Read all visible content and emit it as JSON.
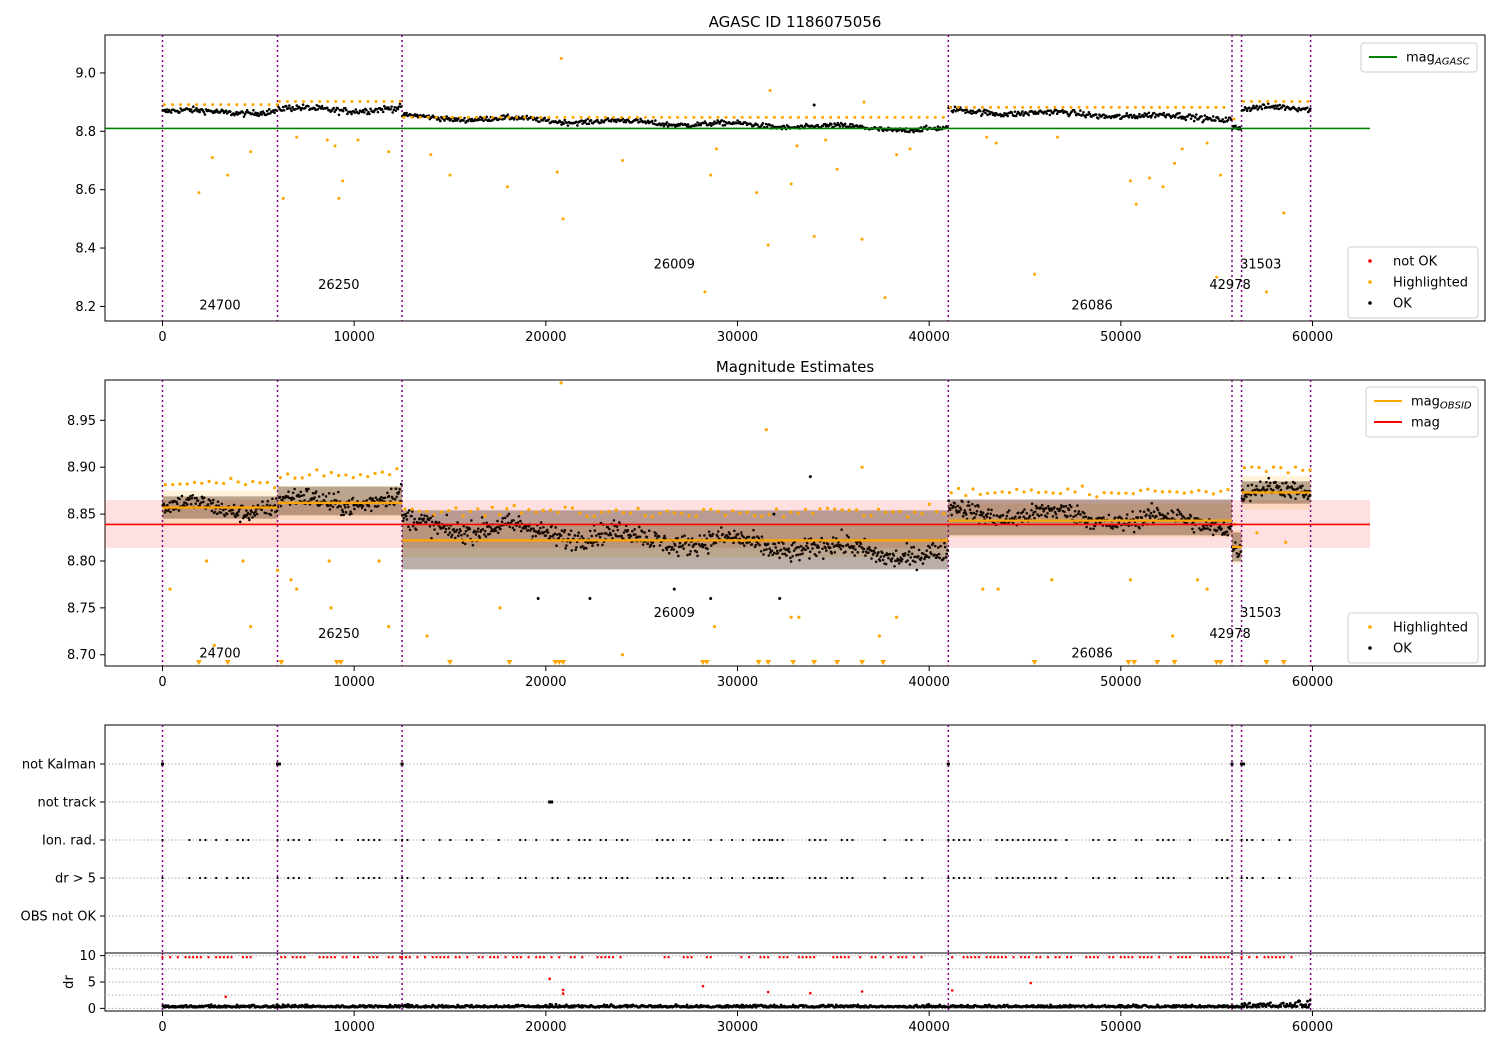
{
  "figure": {
    "suptitle": "AGASC ID 1186075056",
    "obsids": [
      {
        "label": "24700",
        "label_x": 3000
      },
      {
        "label": "26250",
        "label_x": 9200
      },
      {
        "label": "26009",
        "label_x": 26700
      },
      {
        "label": "26086",
        "label_x": 48500
      },
      {
        "label": "42978",
        "label_x": 55700
      },
      {
        "label": "31503",
        "label_x": 57300
      }
    ],
    "obs_boundaries": [
      0,
      6000,
      12500,
      41000,
      55800,
      56300,
      59900
    ],
    "obs_label_levels": {
      "24700": 0,
      "26250": 1,
      "26009": 2,
      "26086": 0,
      "42978": 1,
      "31503": 2
    }
  },
  "chart_data": [
    {
      "type": "scatter",
      "title": "AGASC ID 1186075056",
      "xlim": [
        -3000,
        69000
      ],
      "ylim": [
        8.15,
        9.13
      ],
      "xticks": [
        0,
        10000,
        20000,
        30000,
        40000,
        50000,
        60000
      ],
      "yticks": [
        8.2,
        8.4,
        8.6,
        8.8,
        9.0
      ],
      "ytick_labels": [
        "8.2",
        "8.4",
        "8.6",
        "8.8",
        "9.0"
      ],
      "mag_agasc": 8.81,
      "segments": [
        {
          "x0": 0,
          "x1": 6000,
          "mean": 8.867,
          "spread": 0.018
        },
        {
          "x0": 6000,
          "x1": 12500,
          "mean": 8.875,
          "spread": 0.02
        },
        {
          "x0": 12500,
          "x1": 41000,
          "mean": 8.835,
          "start": 8.85,
          "end": 8.805,
          "spread": 0.015
        },
        {
          "x0": 41000,
          "x1": 55800,
          "mean": 8.865,
          "start": 8.87,
          "end": 8.845,
          "spread": 0.018
        },
        {
          "x0": 55800,
          "x1": 56300,
          "mean": 8.815,
          "spread": 0.02
        },
        {
          "x0": 56300,
          "x1": 59900,
          "mean": 8.878,
          "spread": 0.018
        }
      ],
      "highlighted": [
        [
          1900,
          8.59
        ],
        [
          2600,
          8.71
        ],
        [
          3400,
          8.65
        ],
        [
          4600,
          8.73
        ],
        [
          6300,
          8.57
        ],
        [
          7000,
          8.78
        ],
        [
          8600,
          8.77
        ],
        [
          9000,
          8.75
        ],
        [
          9200,
          8.57
        ],
        [
          9400,
          8.63
        ],
        [
          10200,
          8.77
        ],
        [
          11800,
          8.73
        ],
        [
          14000,
          8.72
        ],
        [
          15000,
          8.65
        ],
        [
          18000,
          8.61
        ],
        [
          20600,
          8.66
        ],
        [
          20800,
          9.05
        ],
        [
          20900,
          8.5
        ],
        [
          24000,
          8.7
        ],
        [
          28300,
          8.25
        ],
        [
          28600,
          8.65
        ],
        [
          28900,
          8.74
        ],
        [
          31000,
          8.59
        ],
        [
          31600,
          8.41
        ],
        [
          31700,
          8.94
        ],
        [
          32800,
          8.62
        ],
        [
          33100,
          8.75
        ],
        [
          34000,
          8.44
        ],
        [
          34600,
          8.77
        ],
        [
          35200,
          8.67
        ],
        [
          36500,
          8.43
        ],
        [
          36600,
          8.9
        ],
        [
          37700,
          8.23
        ],
        [
          38300,
          8.72
        ],
        [
          39000,
          8.74
        ],
        [
          43000,
          8.78
        ],
        [
          43500,
          8.76
        ],
        [
          45500,
          8.31
        ],
        [
          46700,
          8.78
        ],
        [
          50500,
          8.63
        ],
        [
          50800,
          8.55
        ],
        [
          51500,
          8.64
        ],
        [
          52200,
          8.61
        ],
        [
          52800,
          8.69
        ],
        [
          53200,
          8.74
        ],
        [
          54500,
          8.76
        ],
        [
          55000,
          8.3
        ],
        [
          55200,
          8.65
        ],
        [
          57600,
          8.25
        ],
        [
          58500,
          8.52
        ]
      ],
      "ok_outliers": [
        [
          34000,
          8.89
        ],
        [
          12700,
          8.86
        ]
      ],
      "legend": {
        "lines": [
          {
            "label": "mag_AGASC",
            "base": "mag",
            "sub": "AGASC",
            "color": "#008000"
          }
        ],
        "markers": [
          {
            "label": "not OK",
            "color": "#ff0000"
          },
          {
            "label": "Highlighted",
            "color": "#ffa500"
          },
          {
            "label": "OK",
            "color": "#000000"
          }
        ]
      }
    },
    {
      "type": "scatter",
      "title": "Magnitude Estimates",
      "xlim": [
        -3000,
        69000
      ],
      "ylim": [
        8.688,
        8.993
      ],
      "xticks": [
        0,
        10000,
        20000,
        30000,
        40000,
        50000,
        60000
      ],
      "yticks": [
        8.7,
        8.75,
        8.8,
        8.85,
        8.9,
        8.95
      ],
      "ytick_labels": [
        "8.70",
        "8.75",
        "8.80",
        "8.85",
        "8.90",
        "8.95"
      ],
      "mag": 8.839,
      "mag_band": [
        8.814,
        8.865
      ],
      "obsid_means": [
        {
          "x0": 0,
          "x1": 6000,
          "mean": 8.857
        },
        {
          "x0": 6000,
          "x1": 12500,
          "mean": 8.862
        },
        {
          "x0": 12500,
          "x1": 41000,
          "mean": 8.822
        },
        {
          "x0": 41000,
          "x1": 55800,
          "mean": 8.843
        },
        {
          "x0": 55800,
          "x1": 56300,
          "mean": 8.815
        },
        {
          "x0": 56300,
          "x1": 59900,
          "mean": 8.873
        }
      ],
      "segments": [
        {
          "x0": 0,
          "x1": 6000,
          "start": 8.857,
          "end": 8.857,
          "spread": 0.017
        },
        {
          "x0": 6000,
          "x1": 12500,
          "start": 8.862,
          "end": 8.866,
          "spread": 0.019
        },
        {
          "x0": 12500,
          "x1": 41000,
          "start": 8.84,
          "end": 8.805,
          "spread": 0.02
        },
        {
          "x0": 41000,
          "x1": 55800,
          "start": 8.853,
          "end": 8.84,
          "spread": 0.018
        },
        {
          "x0": 55800,
          "x1": 56300,
          "start": 8.82,
          "end": 8.81,
          "spread": 0.015
        },
        {
          "x0": 56300,
          "x1": 59900,
          "start": 8.873,
          "end": 8.873,
          "spread": 0.017
        }
      ],
      "highlighted": [
        [
          400,
          8.77
        ],
        [
          2300,
          8.8
        ],
        [
          2700,
          8.71
        ],
        [
          4200,
          8.8
        ],
        [
          4600,
          8.73
        ],
        [
          6000,
          8.79
        ],
        [
          6700,
          8.78
        ],
        [
          7000,
          8.77
        ],
        [
          8700,
          8.8
        ],
        [
          8800,
          8.75
        ],
        [
          11300,
          8.8
        ],
        [
          11800,
          8.73
        ],
        [
          13800,
          8.72
        ],
        [
          17600,
          8.75
        ],
        [
          20800,
          8.99
        ],
        [
          24000,
          8.7
        ],
        [
          28800,
          8.73
        ],
        [
          31500,
          8.94
        ],
        [
          32800,
          8.74
        ],
        [
          33200,
          8.74
        ],
        [
          36500,
          8.9
        ],
        [
          37400,
          8.72
        ],
        [
          38300,
          8.74
        ],
        [
          42800,
          8.77
        ],
        [
          43600,
          8.77
        ],
        [
          46400,
          8.78
        ],
        [
          50500,
          8.78
        ],
        [
          52700,
          8.72
        ],
        [
          54000,
          8.78
        ],
        [
          54500,
          8.77
        ],
        [
          57100,
          8.83
        ],
        [
          58600,
          8.82
        ]
      ],
      "ok_outliers": [
        [
          33800,
          8.89
        ],
        [
          19600,
          8.76
        ],
        [
          22300,
          8.76
        ],
        [
          28600,
          8.76
        ],
        [
          31900,
          8.85
        ],
        [
          32200,
          8.76
        ],
        [
          26700,
          8.77
        ]
      ],
      "clipped": [
        1900,
        3400,
        6200,
        9100,
        9300,
        15000,
        18100,
        20500,
        20700,
        20900,
        28200,
        28400,
        31100,
        31600,
        32900,
        34000,
        35200,
        36500,
        37600,
        45500,
        50400,
        50700,
        51900,
        52800,
        55000,
        55200,
        57600,
        58500
      ],
      "legend": {
        "lines": [
          {
            "label": "mag_OBSID",
            "base": "mag",
            "sub": "OBSID",
            "color": "#ffa500"
          },
          {
            "label": "mag",
            "base": "mag",
            "sub": "",
            "color": "#ff0000"
          }
        ],
        "markers": [
          {
            "label": "Highlighted",
            "color": "#ffa500"
          },
          {
            "label": "OK",
            "color": "#000000"
          }
        ]
      }
    },
    {
      "type": "scatter",
      "title": "",
      "xlim": [
        -3000,
        69000
      ],
      "flags": [
        "not Kalman",
        "not track",
        "Ion. rad.",
        "dr > 5",
        "OBS not OK"
      ],
      "flag_points": {
        "not Kalman": [
          0,
          6000,
          6100,
          12500,
          41000,
          55800,
          56300,
          56400
        ],
        "not track": [
          20200,
          20300
        ],
        "Ion. rad.": [],
        "dr > 5": [],
        "OBS not OK": []
      },
      "flag_ranges": [
        [
          0,
          5000
        ],
        [
          6000,
          12500
        ],
        [
          12500,
          24500
        ],
        [
          25800,
          31800
        ],
        [
          31800,
          39800
        ],
        [
          41000,
          55800
        ],
        [
          56300,
          59000
        ]
      ],
      "dr_ylim": [
        -0.5,
        10.5
      ],
      "dr_yticks": [
        0,
        5,
        10
      ],
      "dr_ylabel": "dr",
      "dr_outliers": [
        [
          20200,
          5.6
        ],
        [
          20900,
          3.5
        ],
        [
          20900,
          2.8
        ],
        [
          28200,
          4.2
        ],
        [
          31600,
          3.1
        ],
        [
          36500,
          3.2
        ],
        [
          41200,
          3.4
        ],
        [
          45300,
          4.8
        ],
        [
          33800,
          2.9
        ],
        [
          3300,
          2.2
        ]
      ]
    }
  ]
}
